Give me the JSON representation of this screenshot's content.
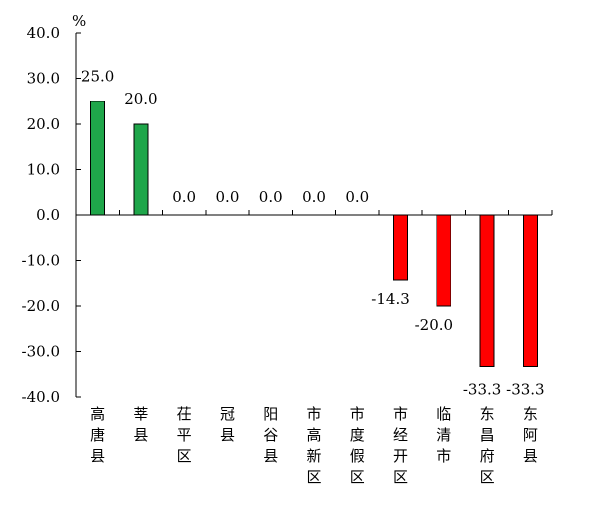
{
  "chart_data": {
    "type": "bar",
    "unit": "%",
    "categories": [
      "高唐县",
      "莘县",
      "茌平区",
      "冠县",
      "阳谷县",
      "市高新区",
      "市度假区",
      "市经开区",
      "临清市",
      "东昌府区",
      "东阿县"
    ],
    "values": [
      25.0,
      20.0,
      0.0,
      0.0,
      0.0,
      0.0,
      0.0,
      -14.3,
      -20.0,
      -33.3,
      -33.3
    ],
    "value_labels": [
      "25.0",
      "20.0",
      "0.0",
      "0.0",
      "0.0",
      "0.0",
      "0.0",
      "-14.3",
      "-20.0",
      "-33.3",
      "-33.3"
    ],
    "ylim": [
      -40,
      40
    ],
    "yticks": [
      40,
      30,
      20,
      10,
      0,
      -10,
      -20,
      -30,
      -40
    ],
    "ytick_labels": [
      "40.0",
      "30.0",
      "20.0",
      "10.0",
      "0.0",
      "-10.0",
      "-20.0",
      "-30.0",
      "-40.0"
    ],
    "colors": {
      "positive": "#1fa64a",
      "negative": "#ff0000"
    },
    "grid": false,
    "legend": "none"
  }
}
